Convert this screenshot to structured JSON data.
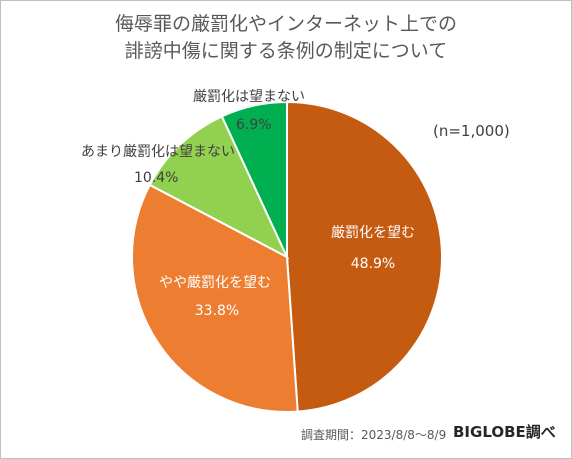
{
  "chart_data": {
    "type": "pie",
    "title_lines": [
      "侮辱罪の厳罰化やインターネット上での",
      "誹謗中傷に関する条例の制定について"
    ],
    "note": "(n=1,000)",
    "slices": [
      {
        "label": "厳罰化を望む",
        "value": 48.9,
        "value_label": "48.9%",
        "color": "#c55a11"
      },
      {
        "label": "やや厳罰化を望む",
        "value": 33.8,
        "value_label": "33.8%",
        "color": "#ed7d31"
      },
      {
        "label": "あまり厳罰化は望まない",
        "value": 10.4,
        "value_label": "10.4%",
        "color": "#92d050"
      },
      {
        "label": "厳罰化は望まない",
        "value": 6.9,
        "value_label": "6.9%",
        "color": "#00b050"
      }
    ],
    "start": "12 o'clock",
    "direction": "clockwise"
  },
  "footer": {
    "period": "調査期間：2023/8/8～8/9",
    "brand": "BIGLOBE調べ"
  }
}
